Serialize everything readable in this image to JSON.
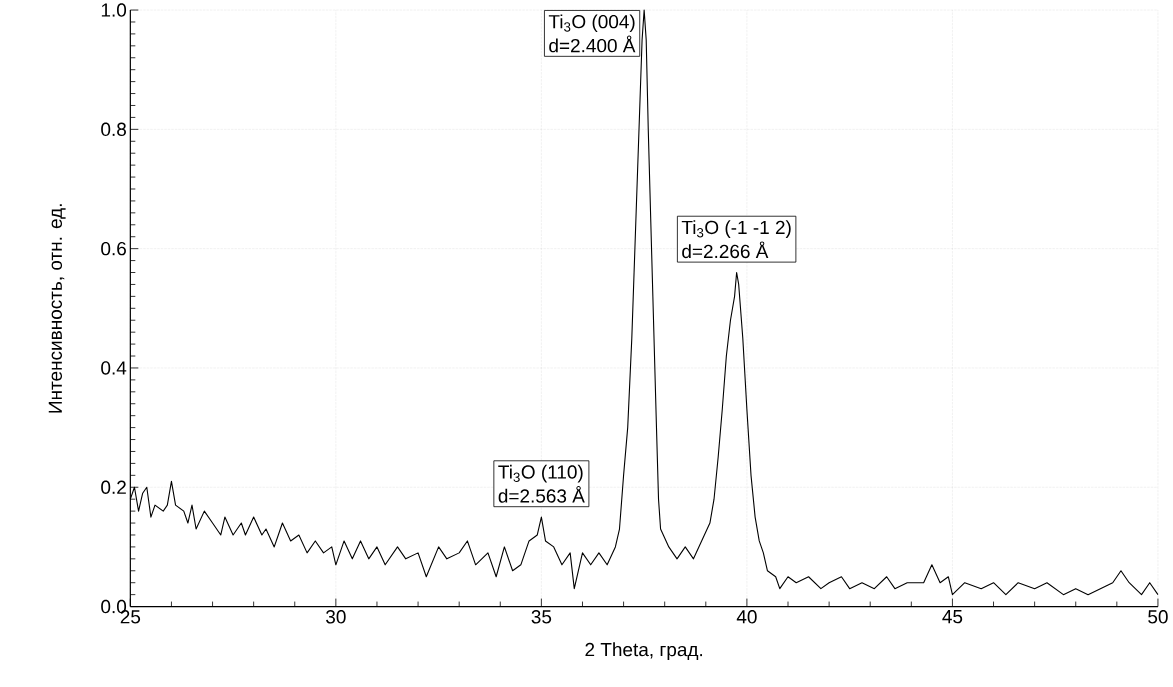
{
  "chart_data": {
    "type": "line",
    "xlabel": "2 Theta, град.",
    "ylabel": "Интенсивность, отн. ед.",
    "xlim": [
      25,
      50
    ],
    "ylim": [
      0,
      1.0
    ],
    "xticks": [
      25,
      30,
      35,
      40,
      45,
      50
    ],
    "yticks": [
      {
        "value": 0,
        "label": "0.0"
      },
      0.2,
      0.4,
      0.6,
      0.8,
      {
        "value": 1.0,
        "label": "1.0"
      }
    ],
    "grid": true,
    "marker": "none",
    "line_style": "solid",
    "annotations": [
      {
        "text": "Ti$_{3}$O (004)",
        "x": 37.5,
        "y": 1.0
      },
      {
        "text": "d=2.400 Å",
        "x": 37.5,
        "y": 1.0
      },
      {
        "text": "Ti$_{3}$O (-1 -1 2)",
        "x": 39.75,
        "y": 0.56
      },
      {
        "text": "d=2.266 Å",
        "x": 39.75,
        "y": 0.56
      },
      {
        "text": "Ti$_{3}$O (110)",
        "x": 35.0,
        "y": 0.15
      },
      {
        "text": "d=2.563 Å",
        "x": 35.0,
        "y": 0.15
      }
    ],
    "series": [
      {
        "color": "#000000",
        "x": [
          25.0,
          25.1,
          25.2,
          25.3,
          25.4,
          25.5,
          25.6,
          25.8,
          25.9,
          26.0,
          26.1,
          26.3,
          26.4,
          26.5,
          26.6,
          26.8,
          27.0,
          27.2,
          27.3,
          27.5,
          27.7,
          27.8,
          28.0,
          28.2,
          28.3,
          28.5,
          28.6,
          28.7,
          28.9,
          29.1,
          29.3,
          29.5,
          29.7,
          29.9,
          30.0,
          30.2,
          30.4,
          30.6,
          30.8,
          31.0,
          31.2,
          31.5,
          31.7,
          32.0,
          32.2,
          32.5,
          32.7,
          33.0,
          33.2,
          33.4,
          33.7,
          33.9,
          34.1,
          34.3,
          34.5,
          34.7,
          34.9,
          35.0,
          35.1,
          35.3,
          35.5,
          35.7,
          35.8,
          36.0,
          36.2,
          36.4,
          36.6,
          36.8,
          36.9,
          37.0,
          37.1,
          37.2,
          37.3,
          37.4,
          37.45,
          37.5,
          37.55,
          37.6,
          37.7,
          37.8,
          37.85,
          37.9,
          38.1,
          38.3,
          38.5,
          38.7,
          38.9,
          39.1,
          39.2,
          39.3,
          39.4,
          39.5,
          39.6,
          39.7,
          39.75,
          39.8,
          39.9,
          40.0,
          40.1,
          40.2,
          40.3,
          40.4,
          40.5,
          40.7,
          40.8,
          41.0,
          41.2,
          41.5,
          41.8,
          42.0,
          42.3,
          42.5,
          42.8,
          43.1,
          43.4,
          43.6,
          43.9,
          44.3,
          44.5,
          44.7,
          44.9,
          45.0,
          45.3,
          45.7,
          46.0,
          46.3,
          46.6,
          47.0,
          47.3,
          47.7,
          48.0,
          48.3,
          48.6,
          48.9,
          49.1,
          49.3,
          49.6,
          49.8,
          50.0
        ],
        "values": [
          0.18,
          0.2,
          0.16,
          0.19,
          0.2,
          0.15,
          0.17,
          0.16,
          0.17,
          0.21,
          0.17,
          0.16,
          0.14,
          0.17,
          0.13,
          0.16,
          0.14,
          0.12,
          0.15,
          0.12,
          0.14,
          0.12,
          0.15,
          0.12,
          0.13,
          0.1,
          0.12,
          0.14,
          0.11,
          0.12,
          0.09,
          0.11,
          0.09,
          0.1,
          0.07,
          0.11,
          0.08,
          0.11,
          0.08,
          0.1,
          0.07,
          0.1,
          0.08,
          0.09,
          0.05,
          0.1,
          0.08,
          0.09,
          0.11,
          0.07,
          0.09,
          0.05,
          0.1,
          0.06,
          0.07,
          0.11,
          0.12,
          0.15,
          0.11,
          0.1,
          0.07,
          0.09,
          0.03,
          0.09,
          0.07,
          0.09,
          0.07,
          0.1,
          0.13,
          0.22,
          0.3,
          0.45,
          0.65,
          0.85,
          0.95,
          1.0,
          0.95,
          0.8,
          0.55,
          0.3,
          0.18,
          0.13,
          0.1,
          0.08,
          0.1,
          0.08,
          0.11,
          0.14,
          0.18,
          0.25,
          0.33,
          0.42,
          0.48,
          0.52,
          0.56,
          0.54,
          0.45,
          0.33,
          0.22,
          0.15,
          0.11,
          0.09,
          0.06,
          0.05,
          0.03,
          0.05,
          0.04,
          0.05,
          0.03,
          0.04,
          0.05,
          0.03,
          0.04,
          0.03,
          0.05,
          0.03,
          0.04,
          0.04,
          0.07,
          0.04,
          0.05,
          0.02,
          0.04,
          0.03,
          0.04,
          0.02,
          0.04,
          0.03,
          0.04,
          0.02,
          0.03,
          0.02,
          0.03,
          0.04,
          0.06,
          0.04,
          0.02,
          0.04,
          0.02
        ]
      }
    ]
  }
}
